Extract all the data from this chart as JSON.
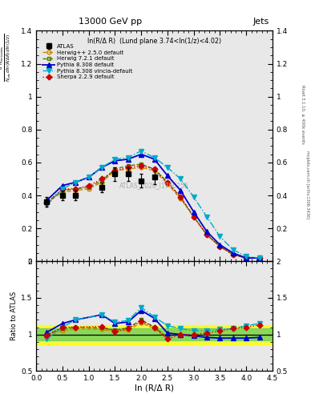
{
  "title_top": "13000 GeV pp",
  "title_right": "Jets",
  "plot_title": "ln(R/Δ R)  (Lund plane 3.74<ln(1/z)<4.02)",
  "watermark": "ATLAS_2020_I1790256",
  "xlabel": "ln (R/Δ R)",
  "ylabel_ratio": "Ratio to ATLAS",
  "ylabel_right": "Rivet 3.1.10, ≥ 400k events",
  "ylabel_right2": "mcplots.cern.ch [arXiv:1306.3436]",
  "xdata": [
    0.2,
    0.5,
    0.75,
    1.0,
    1.25,
    1.5,
    1.75,
    2.0,
    2.25,
    2.5,
    2.75,
    3.0,
    3.25,
    3.5,
    3.75,
    4.0,
    4.25
  ],
  "atlas_y": [
    0.36,
    0.4,
    0.4,
    null,
    0.45,
    0.53,
    0.53,
    0.49,
    0.51,
    null,
    null,
    null,
    null,
    null,
    null,
    null,
    null
  ],
  "atlas_yerr": [
    0.03,
    0.03,
    0.03,
    null,
    0.03,
    0.04,
    0.04,
    0.04,
    0.04,
    null,
    null,
    null,
    null,
    null,
    null,
    null,
    null
  ],
  "herwig_pp_y": [
    0.355,
    0.42,
    0.43,
    0.44,
    0.48,
    0.55,
    0.56,
    0.57,
    0.55,
    0.47,
    0.38,
    0.27,
    0.16,
    0.09,
    0.04,
    0.02,
    0.02
  ],
  "herwig72_y": [
    0.36,
    0.43,
    0.44,
    0.45,
    0.49,
    0.56,
    0.58,
    0.59,
    0.56,
    0.48,
    0.39,
    0.27,
    0.16,
    0.09,
    0.04,
    0.02,
    0.02
  ],
  "pythia8308_y": [
    0.37,
    0.46,
    0.48,
    0.51,
    0.57,
    0.61,
    0.62,
    0.65,
    0.62,
    0.52,
    0.43,
    0.3,
    0.18,
    0.1,
    0.05,
    0.02,
    0.02
  ],
  "pythia8308v_y": [
    0.34,
    0.44,
    0.48,
    0.51,
    0.57,
    0.62,
    0.63,
    0.67,
    0.63,
    0.57,
    0.5,
    0.39,
    0.27,
    0.15,
    0.07,
    0.03,
    0.02
  ],
  "sherpa_y": [
    0.355,
    0.44,
    0.44,
    0.46,
    0.5,
    0.55,
    0.57,
    0.58,
    0.56,
    0.48,
    0.39,
    0.27,
    0.16,
    0.09,
    0.04,
    0.02,
    0.02
  ],
  "herwig_pp_ratio": [
    0.99,
    1.05,
    1.08,
    null,
    1.07,
    1.04,
    1.06,
    1.16,
    1.08,
    0.94,
    null,
    null,
    null,
    null,
    null,
    null,
    null
  ],
  "herwig72_ratio": [
    1.0,
    1.08,
    1.1,
    null,
    1.09,
    1.06,
    1.09,
    1.2,
    1.1,
    0.96,
    null,
    null,
    null,
    null,
    null,
    null,
    null
  ],
  "pythia8308_ratio": [
    1.03,
    1.15,
    1.2,
    null,
    1.27,
    1.15,
    1.17,
    1.33,
    1.22,
    1.02,
    1.0,
    0.98,
    0.96,
    0.95,
    0.95,
    0.95,
    0.96
  ],
  "pythia8308v_ratio": [
    0.94,
    1.1,
    1.2,
    null,
    1.27,
    1.17,
    1.19,
    1.37,
    1.24,
    1.12,
    1.08,
    1.05,
    1.05,
    1.07,
    1.08,
    1.12,
    1.15
  ],
  "sherpa_ratio": [
    0.99,
    1.1,
    1.1,
    null,
    1.11,
    1.04,
    1.08,
    1.18,
    1.1,
    0.94,
    1.0,
    1.0,
    1.02,
    1.05,
    1.08,
    1.1,
    1.13
  ],
  "color_herwig_pp": "#cc8800",
  "color_herwig72": "#557700",
  "color_pythia8308": "#0000cc",
  "color_pythia8308v": "#00aacc",
  "color_sherpa": "#cc0000",
  "ylim_main": [
    0.0,
    1.4
  ],
  "ylim_ratio": [
    0.5,
    2.0
  ],
  "xlim": [
    0.0,
    4.5
  ],
  "bg_color": "#e8e8e8"
}
